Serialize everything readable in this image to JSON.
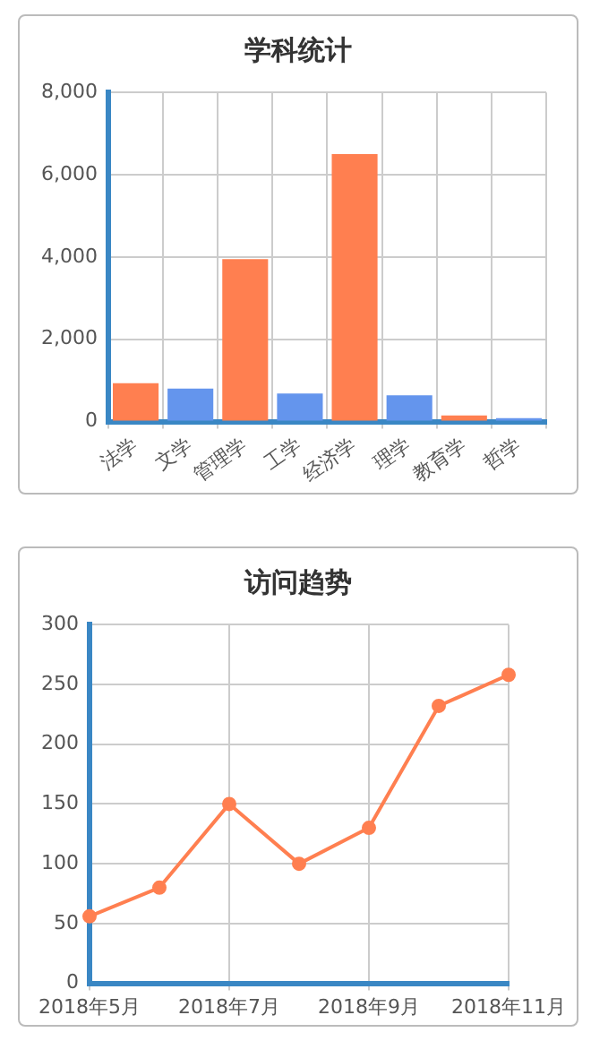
{
  "chart_data": [
    {
      "type": "bar",
      "title": "学科统计",
      "categories": [
        "法学",
        "文学",
        "管理学",
        "工学",
        "经济学",
        "理学",
        "教育学",
        "哲学"
      ],
      "values": [
        930,
        800,
        3950,
        680,
        6500,
        640,
        150,
        80
      ],
      "colors": [
        "#ff7f50",
        "#6495ed",
        "#ff7f50",
        "#6495ed",
        "#ff7f50",
        "#6495ed",
        "#ff7f50",
        "#6495ed"
      ],
      "ylim": [
        0,
        8000
      ],
      "yticks": [
        {
          "value": 0,
          "label": "0"
        },
        {
          "value": 2000,
          "label": "2,000"
        },
        {
          "value": 4000,
          "label": "4,000"
        },
        {
          "value": 6000,
          "label": "6,000"
        },
        {
          "value": 8000,
          "label": "8,000"
        }
      ],
      "grid": true,
      "legend": false
    },
    {
      "type": "line",
      "title": "访问趋势",
      "categories": [
        "2018年5月",
        null,
        "2018年7月",
        null,
        "2018年9月",
        null,
        "2018年11月"
      ],
      "values": [
        56,
        80,
        150,
        100,
        130,
        232,
        258
      ],
      "color": "#ff7f50",
      "ylim": [
        0,
        300
      ],
      "yticks": [
        0,
        50,
        100,
        150,
        200,
        250,
        300
      ],
      "grid": true,
      "legend": false,
      "marker": "circle",
      "line_style": "solid"
    }
  ]
}
